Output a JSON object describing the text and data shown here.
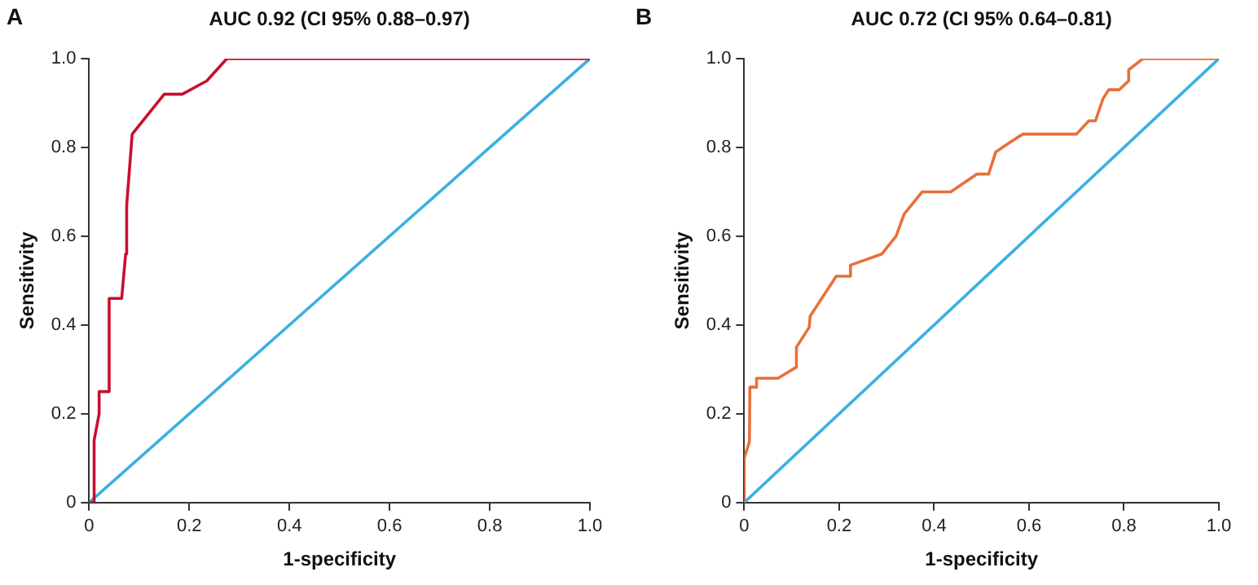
{
  "chart_data": [
    {
      "type": "line",
      "title": "AUC 0.92 (CI 95% 0.88–0.97)",
      "xlabel": "1-specificity",
      "ylabel": "Sensitivity",
      "annotations": [
        "A"
      ],
      "xlim": [
        0,
        1
      ],
      "ylim": [
        0,
        1
      ],
      "xticks": [
        0,
        0.2,
        0.4,
        0.6,
        0.8,
        {
          "value": 1,
          "label": "1.0"
        }
      ],
      "yticks": [
        0,
        0.2,
        0.4,
        0.6,
        0.8,
        {
          "value": 1,
          "label": "1.0"
        }
      ],
      "grid": false,
      "legend": false,
      "marker": "none",
      "line_style": "solid",
      "series": [
        {
          "color": "#c8102e",
          "x": [
            0,
            0.01,
            0.01,
            0.02,
            0.02,
            0.04,
            0.04,
            0.065,
            0.073,
            0.075,
            0.086,
            0.15,
            0.186,
            0.235,
            0.275,
            1
          ],
          "values": [
            0,
            0,
            0.14,
            0.2,
            0.25,
            0.25,
            0.46,
            0.46,
            0.56,
            0.67,
            0.83,
            0.92,
            0.92,
            0.95,
            1,
            1
          ]
        },
        {
          "color": "#3ab0e2",
          "x": [
            0,
            1
          ],
          "values": [
            0,
            1
          ]
        }
      ]
    },
    {
      "type": "line",
      "title": "AUC 0.72 (CI 95% 0.64–0.81)",
      "xlabel": "1-specificity",
      "ylabel": "Sensitivity",
      "annotations": [
        "B"
      ],
      "xlim": [
        0,
        1
      ],
      "ylim": [
        0,
        1
      ],
      "xticks": [
        0,
        0.2,
        0.4,
        0.6,
        0.8,
        {
          "value": 1,
          "label": "1.0"
        }
      ],
      "yticks": [
        0,
        0.2,
        0.4,
        0.6,
        0.8,
        {
          "value": 1,
          "label": "1.0"
        }
      ],
      "grid": false,
      "legend": false,
      "marker": "none",
      "line_style": "solid",
      "series": [
        {
          "color": "#e8703a",
          "x": [
            0,
            0,
            0.011,
            0.012,
            0.026,
            0.026,
            0.071,
            0.11,
            0.11,
            0.137,
            0.139,
            0.194,
            0.223,
            0.224,
            0.29,
            0.32,
            0.337,
            0.375,
            0.435,
            0.49,
            0.515,
            0.53,
            0.565,
            0.587,
            0.7,
            0.726,
            0.74,
            0.756,
            0.768,
            0.79,
            0.81,
            0.81,
            0.84,
            1
          ],
          "values": [
            0,
            0.1,
            0.137,
            0.26,
            0.26,
            0.28,
            0.28,
            0.305,
            0.35,
            0.395,
            0.42,
            0.51,
            0.51,
            0.535,
            0.56,
            0.6,
            0.65,
            0.7,
            0.7,
            0.74,
            0.74,
            0.79,
            0.815,
            0.83,
            0.83,
            0.86,
            0.86,
            0.91,
            0.93,
            0.93,
            0.95,
            0.975,
            1,
            1
          ]
        },
        {
          "color": "#3ab0e2",
          "x": [
            0,
            1
          ],
          "values": [
            0,
            1
          ]
        }
      ]
    }
  ]
}
